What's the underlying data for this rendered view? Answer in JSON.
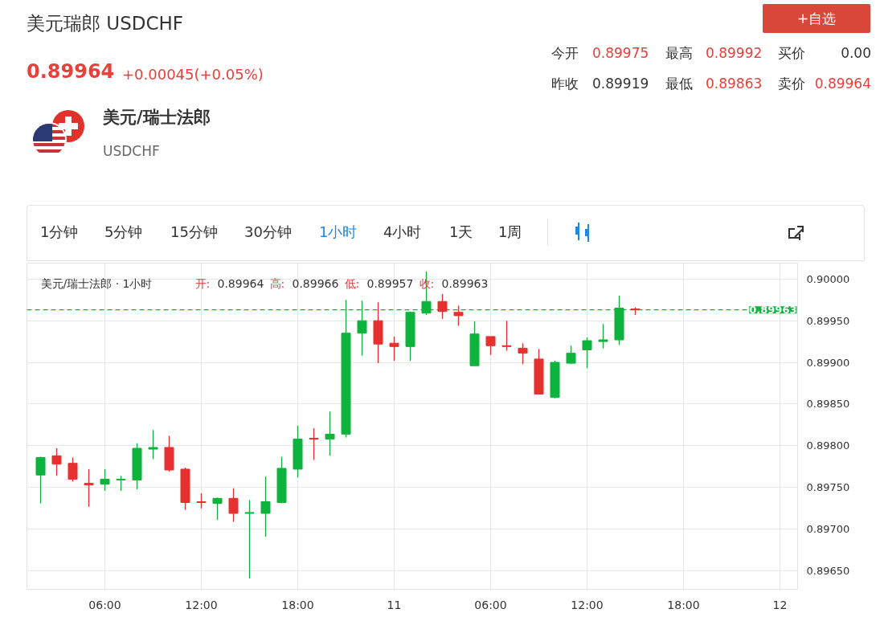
{
  "chart_data": {
    "type": "candlestick",
    "title": "美元瑞郎 USDCHF",
    "categories": [
      null,
      null,
      null,
      null,
      "06:00",
      null,
      null,
      null,
      null,
      null,
      "12:00",
      null,
      null,
      null,
      null,
      null,
      "18:00",
      null,
      null,
      null,
      null,
      null,
      "11",
      null,
      null,
      null,
      null,
      null,
      "06:00",
      null,
      null,
      null,
      null,
      null,
      "12:00",
      null,
      null,
      null,
      null,
      null,
      "18:00",
      null,
      null,
      null,
      null,
      null,
      "12"
    ],
    "ohlc": [
      [
        0.89765,
        0.89787,
        0.89731,
        0.89786
      ],
      [
        0.89788,
        0.89797,
        0.89764,
        0.89778
      ],
      [
        0.89779,
        0.89786,
        0.89757,
        0.8976
      ],
      [
        0.89755,
        0.89772,
        0.89727,
        0.89753
      ],
      [
        0.89754,
        0.89772,
        0.89746,
        0.8976
      ],
      [
        0.89759,
        0.89764,
        0.89746,
        0.8976
      ],
      [
        0.89759,
        0.89803,
        0.89748,
        0.89797
      ],
      [
        0.89796,
        0.89819,
        0.89784,
        0.89798
      ],
      [
        0.89798,
        0.89812,
        0.89769,
        0.89771
      ],
      [
        0.89772,
        0.89774,
        0.89723,
        0.89732
      ],
      [
        0.89733,
        0.89743,
        0.89725,
        0.89732
      ],
      [
        0.89731,
        0.89738,
        0.89711,
        0.89737
      ],
      [
        0.89737,
        0.89749,
        0.89709,
        0.89719
      ],
      [
        0.89719,
        0.89735,
        0.89641,
        0.8972
      ],
      [
        0.89719,
        0.89763,
        0.89691,
        0.89733
      ],
      [
        0.89732,
        0.89787,
        0.89731,
        0.89773
      ],
      [
        0.89772,
        0.89824,
        0.89762,
        0.89808
      ],
      [
        0.89809,
        0.89821,
        0.89783,
        0.89808
      ],
      [
        0.89808,
        0.89841,
        0.89788,
        0.89814
      ],
      [
        0.89814,
        0.89975,
        0.8981,
        0.89935
      ],
      [
        0.89935,
        0.89974,
        0.89908,
        0.8995
      ],
      [
        0.8995,
        0.89972,
        0.89899,
        0.89922
      ],
      [
        0.89923,
        0.89931,
        0.89902,
        0.89919
      ],
      [
        0.89919,
        0.89961,
        0.89902,
        0.8996
      ],
      [
        0.89959,
        0.90009,
        0.89957,
        0.89973
      ],
      [
        0.89973,
        0.89982,
        0.89952,
        0.89961
      ],
      [
        0.8996,
        0.89968,
        0.89944,
        0.89956
      ],
      [
        0.89896,
        0.89949,
        0.89896,
        0.89934
      ],
      [
        0.89931,
        0.89931,
        0.89909,
        0.8992
      ],
      [
        0.8992,
        0.8995,
        0.89914,
        0.89919
      ],
      [
        0.89917,
        0.89923,
        0.89898,
        0.89911
      ],
      [
        0.89904,
        0.89916,
        0.89862,
        0.89862
      ],
      [
        0.89858,
        0.89902,
        0.89857,
        0.899
      ],
      [
        0.89899,
        0.8992,
        0.89898,
        0.89911
      ],
      [
        0.89915,
        0.8993,
        0.89893,
        0.89926
      ],
      [
        0.89925,
        0.89946,
        0.89917,
        0.89927
      ],
      [
        0.89927,
        0.8998,
        0.89921,
        0.89965
      ],
      [
        0.89964,
        0.89966,
        0.89957,
        0.89963
      ],
      null,
      null,
      null,
      null,
      null,
      null,
      null,
      null,
      null
    ],
    "colors": [
      "#0db43c",
      "#e8302f",
      "#e8302f",
      "#e8302f",
      "#0db43c",
      "#0db43c",
      "#0db43c",
      "#0db43c",
      "#e8302f",
      "#e8302f",
      "#e8302f",
      "#0db43c",
      "#e8302f",
      "#0db43c",
      "#0db43c",
      "#0db43c",
      "#0db43c",
      "#e8302f",
      "#0db43c",
      "#0db43c",
      "#0db43c",
      "#e8302f",
      "#e8302f",
      "#0db43c",
      "#0db43c",
      "#e8302f",
      "#e8302f",
      "#0db43c",
      "#e8302f",
      "#e8302f",
      "#e8302f",
      "#e8302f",
      "#0db43c",
      "#0db43c",
      "#0db43c",
      "#0db43c",
      "#0db43c",
      "#e8302f",
      null,
      null,
      null,
      null,
      null,
      null,
      null,
      null,
      null
    ],
    "ylim": [
      0.89628,
      0.90019
    ],
    "yticks": [
      {
        "value": 0.8965,
        "label": "0.89650"
      },
      {
        "value": 0.897,
        "label": "0.89700"
      },
      {
        "value": 0.8975,
        "label": "0.89750"
      },
      {
        "value": 0.898,
        "label": "0.89800"
      },
      {
        "value": 0.8985,
        "label": "0.89850"
      },
      {
        "value": 0.899,
        "label": "0.89900"
      },
      {
        "value": 0.8995,
        "label": "0.89950"
      },
      {
        "value": 0.9,
        "label": "0.90000"
      }
    ],
    "ref_lines": [
      {
        "axis": "y",
        "value": 0.89963,
        "label": "0.89963",
        "color": "#0db43c",
        "line_style": "dashed"
      }
    ],
    "grid": true,
    "annotations": [
      "0.89964",
      "+0.00045(+0.05%)",
      "今开",
      "0.89975",
      "最高",
      "0.89992",
      "买价",
      "0.00",
      "昨收",
      "0.89919",
      "最低",
      "0.89863",
      "卖价",
      "0.89964",
      "美元/瑞士法郎",
      "USDCHF",
      "+自选",
      "1分钟",
      "5分钟",
      "15分钟",
      "30分钟",
      "1小时",
      "4小时",
      "1天",
      "1周",
      "美元/瑞士法郎 · 1小时",
      "开:",
      "0.89964",
      "高:",
      "0.89966",
      "低:",
      "0.89957",
      "收:",
      "0.89963"
    ]
  }
}
